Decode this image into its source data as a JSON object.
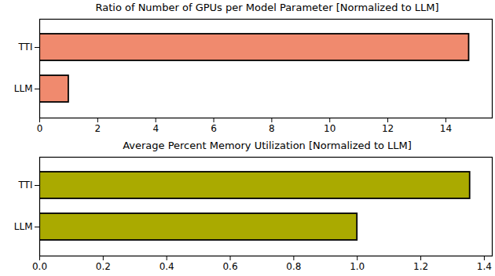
{
  "chart_data": [
    {
      "type": "bar",
      "orientation": "horizontal",
      "title": "Ratio of Number of GPUs per Model Parameter [Normalized to LLM]",
      "categories": [
        "TTI",
        "LLM"
      ],
      "values": [
        14.8,
        1.0
      ],
      "color": "#f08a6e",
      "xlim": [
        0,
        15.6
      ],
      "xticks": [
        0,
        2,
        4,
        6,
        8,
        10,
        12,
        14
      ],
      "grid": false
    },
    {
      "type": "bar",
      "orientation": "horizontal",
      "title": "Average Percent Memory Utilization [Normalized to LLM]",
      "categories": [
        "TTI",
        "LLM"
      ],
      "values": [
        1.355,
        1.0
      ],
      "color": "#aaaa00",
      "xlim": [
        0,
        1.425
      ],
      "xticks": [
        {
          "value": 0,
          "label": "0.0"
        },
        0.2,
        0.4,
        0.6,
        0.8,
        {
          "value": 1,
          "label": "1.0"
        },
        1.2,
        1.4
      ],
      "grid": false
    }
  ]
}
